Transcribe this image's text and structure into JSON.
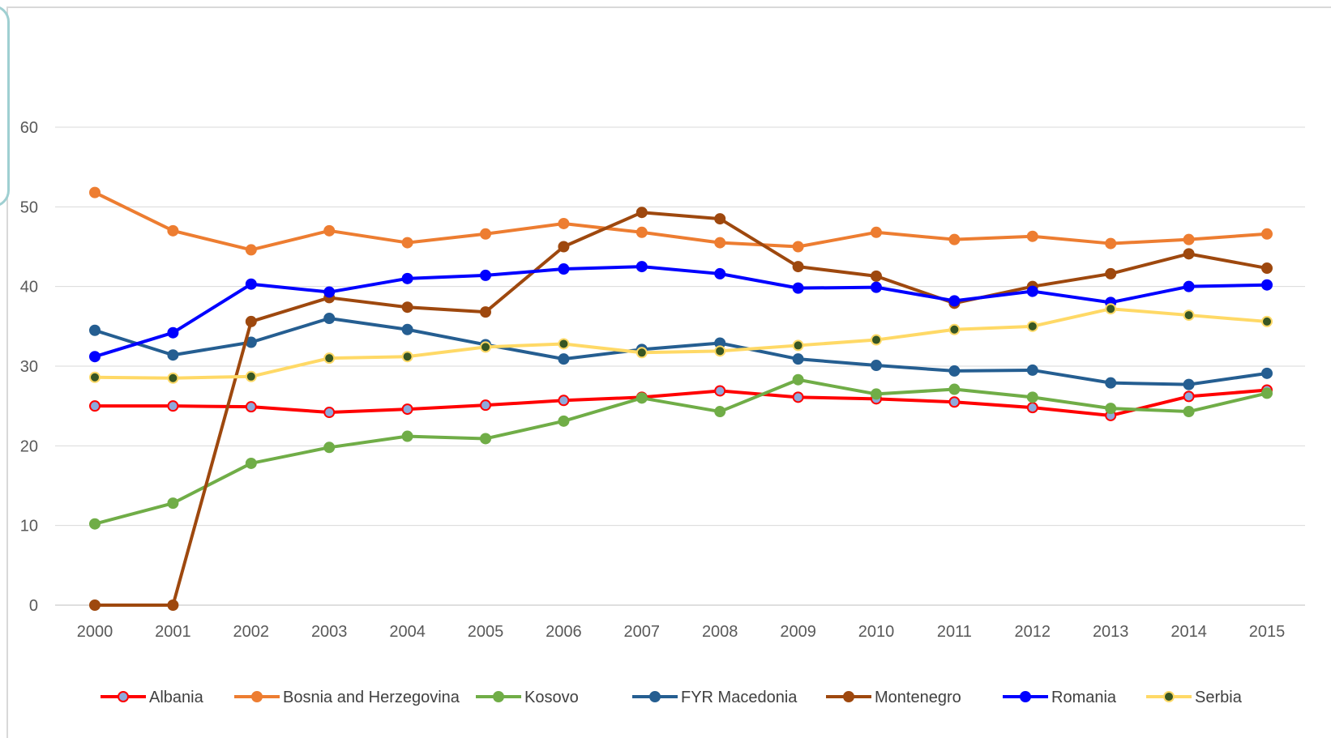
{
  "chart_data": {
    "type": "line",
    "title": "",
    "xlabel": "",
    "ylabel": "",
    "ylim": [
      0,
      60
    ],
    "yticks": [
      0,
      10,
      20,
      30,
      40,
      50,
      60
    ],
    "grid": true,
    "legend": "bottom",
    "x": [
      "2000",
      "2001",
      "2002",
      "2003",
      "2004",
      "2005",
      "2006",
      "2007",
      "2008",
      "2009",
      "2010",
      "2011",
      "2012",
      "2013",
      "2014",
      "2015"
    ],
    "series": [
      {
        "name": "Albania",
        "color": "#ff0000",
        "marker_fill": "#8ea9db",
        "values": [
          25.0,
          25.0,
          24.9,
          24.2,
          24.6,
          25.1,
          25.7,
          26.1,
          26.9,
          26.1,
          25.9,
          25.5,
          24.8,
          23.8,
          26.2,
          27.0
        ]
      },
      {
        "name": "Bosnia and Herzegovina",
        "color": "#ed7d31",
        "marker_fill": "#ed7d31",
        "values": [
          51.8,
          47.0,
          44.6,
          47.0,
          45.5,
          46.6,
          47.9,
          46.8,
          45.5,
          45.0,
          46.8,
          45.9,
          46.3,
          45.4,
          45.9,
          46.6
        ]
      },
      {
        "name": "Kosovo",
        "color": "#70ad47",
        "marker_fill": "#70ad47",
        "values": [
          10.2,
          12.8,
          17.8,
          19.8,
          21.2,
          20.9,
          23.1,
          26.0,
          24.3,
          28.3,
          26.5,
          27.1,
          26.1,
          24.7,
          24.3,
          26.6
        ]
      },
      {
        "name": "FYR Macedonia",
        "color": "#255e91",
        "marker_fill": "#255e91",
        "values": [
          34.5,
          31.4,
          33.0,
          36.0,
          34.6,
          32.7,
          30.9,
          32.1,
          32.9,
          30.9,
          30.1,
          29.4,
          29.5,
          27.9,
          27.7,
          29.1
        ]
      },
      {
        "name": "Montenegro",
        "color": "#9e480e",
        "marker_fill": "#9e480e",
        "values": [
          0.0,
          0.0,
          35.6,
          38.6,
          37.4,
          36.8,
          45.0,
          49.3,
          48.5,
          42.5,
          41.3,
          37.9,
          40.0,
          41.6,
          44.1,
          42.3
        ]
      },
      {
        "name": "Romania",
        "color": "#0000ff",
        "marker_fill": "#0000ff",
        "values": [
          31.2,
          34.2,
          40.3,
          39.3,
          41.0,
          41.4,
          42.2,
          42.5,
          41.6,
          39.8,
          39.9,
          38.2,
          39.4,
          38.0,
          40.0,
          40.2
        ]
      },
      {
        "name": "Serbia",
        "color": "#ffd966",
        "marker_fill": "#375623",
        "values": [
          28.6,
          28.5,
          28.7,
          31.0,
          31.2,
          32.4,
          32.8,
          31.7,
          31.9,
          32.6,
          33.3,
          34.6,
          35.0,
          37.2,
          36.4,
          35.6
        ]
      }
    ]
  }
}
